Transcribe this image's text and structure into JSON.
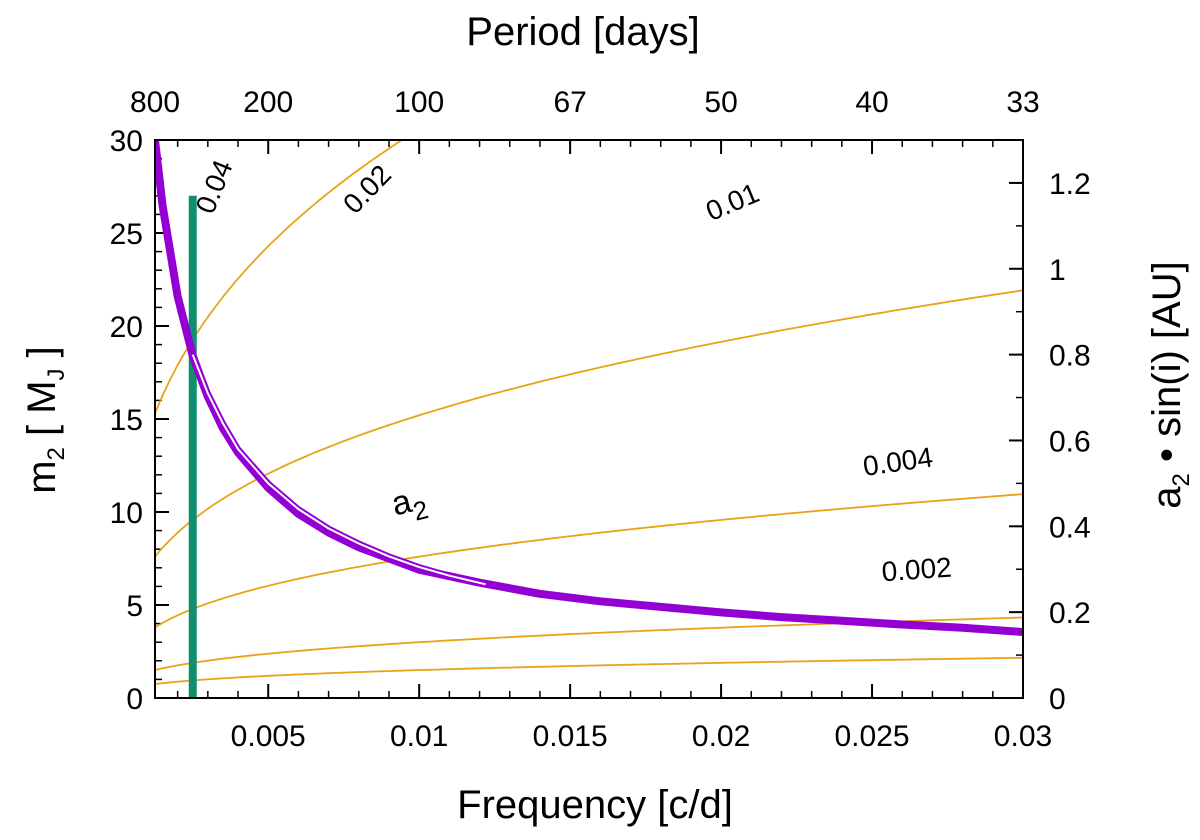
{
  "chart_data": {
    "type": "line",
    "title": "",
    "xlabel": "Frequency  [c/d]",
    "ylabel_left": {
      "main": "m",
      "sub": "2",
      "rest_open": "  [ M",
      "rest_sub": "J",
      "rest_close": " ]"
    },
    "ylabel_right": {
      "main": "a",
      "sub": "2",
      "rest": " • sin(i)  [AU]"
    },
    "top_xlabel": "Period  [days]",
    "xlim": [
      0.00125,
      0.03
    ],
    "ylim_left": [
      0,
      30
    ],
    "ylim_right": [
      0,
      1.3
    ],
    "x_ticks": [
      {
        "value": 0.005,
        "label": "0.005"
      },
      {
        "value": 0.01,
        "label": "0.01"
      },
      {
        "value": 0.015,
        "label": "0.015"
      },
      {
        "value": 0.02,
        "label": "0.02"
      },
      {
        "value": 0.025,
        "label": "0.025"
      },
      {
        "value": 0.03,
        "label": "0.03"
      }
    ],
    "x_minor_step": 0.001,
    "y_left_ticks": [
      {
        "value": 0,
        "label": "0"
      },
      {
        "value": 5,
        "label": "5"
      },
      {
        "value": 10,
        "label": "10"
      },
      {
        "value": 15,
        "label": "15"
      },
      {
        "value": 20,
        "label": "20"
      },
      {
        "value": 25,
        "label": "25"
      },
      {
        "value": 30,
        "label": "30"
      }
    ],
    "y_left_minor_step": 1,
    "y_right_ticks": [
      {
        "value": 0,
        "label": "0"
      },
      {
        "value": 0.2,
        "label": "0.2"
      },
      {
        "value": 0.4,
        "label": "0.4"
      },
      {
        "value": 0.6,
        "label": "0.6"
      },
      {
        "value": 0.8,
        "label": "0.8"
      },
      {
        "value": 1.0,
        "label": "1"
      },
      {
        "value": 1.2,
        "label": "1.2"
      }
    ],
    "y_right_minor_step": 0.1,
    "period_ticks": [
      {
        "freq": 0.00125,
        "label": "800"
      },
      {
        "freq": 0.005,
        "label": "200"
      },
      {
        "freq": 0.01,
        "label": "100"
      },
      {
        "freq": 0.015,
        "label": "67"
      },
      {
        "freq": 0.02,
        "label": "50"
      },
      {
        "freq": 0.025,
        "label": "40"
      },
      {
        "freq": 0.03,
        "label": "33"
      }
    ],
    "mass_function_curves": {
      "color": "#e8a317",
      "f_start": 0.00125,
      "curves": [
        {
          "name": "0.04",
          "label": "0.04",
          "m2_at_f_start": 15.3,
          "exponent": 0.3333
        },
        {
          "name": "0.02",
          "label": "0.02",
          "m2_at_f_start": 7.6,
          "exponent": 0.3333
        },
        {
          "name": "0.01",
          "label": "0.01",
          "m2_at_f_start": 3.8,
          "exponent": 0.3333
        },
        {
          "name": "0.004",
          "label": "0.004",
          "m2_at_f_start": 1.5,
          "exponent": 0.3333
        },
        {
          "name": "0.002",
          "label": "0.002",
          "m2_at_f_start": 0.75,
          "exponent": 0.3333
        }
      ],
      "label_positions": [
        {
          "label": "0.04",
          "x": 0.0035,
          "y": 27.3,
          "angle": -68
        },
        {
          "label": "0.02",
          "x": 0.0085,
          "y": 27.0,
          "angle": -46
        },
        {
          "label": "0.01",
          "x": 0.0205,
          "y": 26.2,
          "angle": -23
        },
        {
          "label": "0.004",
          "x": 0.0259,
          "y": 12.2,
          "angle": -8
        },
        {
          "label": "0.002",
          "x": 0.0265,
          "y": 6.4,
          "angle": -4
        }
      ]
    },
    "series": [
      {
        "name": "m2",
        "color": "#9400d3",
        "description": "m2 versus frequency (thick)",
        "x": [
          0.00125,
          0.0015,
          0.002,
          0.0025,
          0.003,
          0.0035,
          0.004,
          0.005,
          0.006,
          0.007,
          0.008,
          0.009,
          0.01,
          0.012,
          0.014,
          0.016,
          0.018,
          0.02,
          0.022,
          0.024,
          0.026,
          0.028,
          0.03
        ],
        "y": [
          30.0,
          26.5,
          21.6,
          18.4,
          16.2,
          14.5,
          13.2,
          11.3,
          9.9,
          8.9,
          8.1,
          7.5,
          6.9,
          6.2,
          5.6,
          5.2,
          4.9,
          4.6,
          4.35,
          4.15,
          3.95,
          3.78,
          3.55
        ]
      },
      {
        "name": "a2",
        "color": "#9400d3",
        "description": "a2 sin(i) versus frequency (right axis)",
        "x": [
          0.0025,
          0.003,
          0.0035,
          0.004,
          0.005,
          0.006,
          0.007,
          0.008,
          0.009,
          0.01,
          0.011,
          0.0122
        ],
        "y_right": [
          0.8,
          0.71,
          0.64,
          0.58,
          0.5,
          0.44,
          0.395,
          0.36,
          0.33,
          0.305,
          0.285,
          0.265
        ]
      }
    ],
    "a2_label": {
      "main": "a",
      "sub": "2",
      "x": 0.0092,
      "y": 9.8
    },
    "vertical_bar": {
      "color": "#0e8f6e",
      "x": 0.0025,
      "y_from": 0,
      "y_to": 27
    }
  }
}
